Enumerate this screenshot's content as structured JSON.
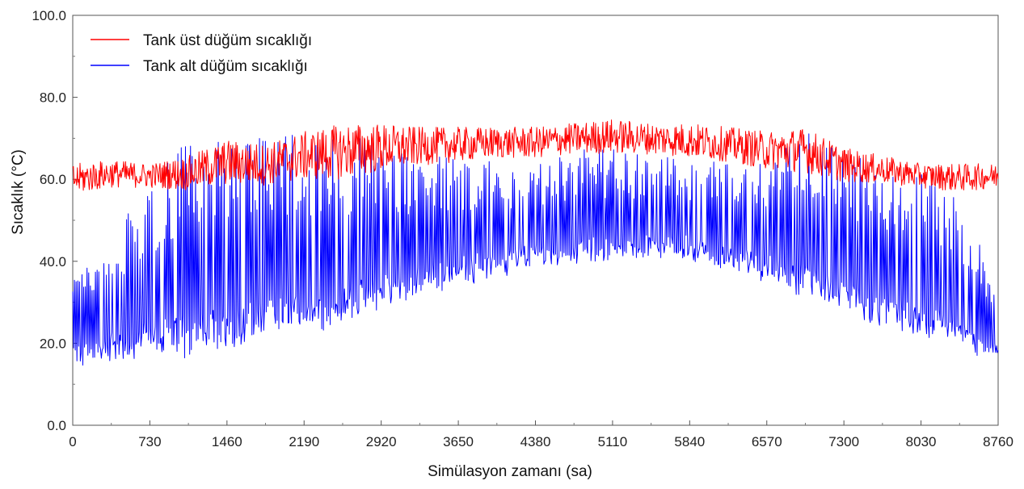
{
  "chart_data": {
    "type": "line",
    "xlabel": "Simülasyon zamanı (sa)",
    "ylabel": "Sıcaklık (°C)",
    "xlim": [
      0,
      8760
    ],
    "ylim": [
      0,
      100
    ],
    "x_ticks": [
      0,
      730,
      1460,
      2190,
      2920,
      3650,
      4380,
      5110,
      5840,
      6570,
      7300,
      8030,
      8760
    ],
    "x_tick_labels": [
      "0",
      "730",
      "1460",
      "2190",
      "2920",
      "3650",
      "4380",
      "5110",
      "5840",
      "6570",
      "7300",
      "8030",
      "8760"
    ],
    "y_ticks": [
      0,
      20,
      40,
      60,
      80,
      100
    ],
    "y_tick_labels": [
      "0.0",
      "20.0",
      "40.0",
      "60.0",
      "80.0",
      "100.0"
    ],
    "grid": false,
    "legend_position": "top-left",
    "series": [
      {
        "name": "Tank üst düğüm sıcaklığı",
        "color": "#ff0000",
        "envelope_x": [
          0,
          365,
          730,
          1095,
          1460,
          1825,
          2190,
          2555,
          2920,
          3285,
          3650,
          4015,
          4380,
          4745,
          5110,
          5475,
          5840,
          6205,
          6570,
          6935,
          7300,
          7665,
          8030,
          8395,
          8760
        ],
        "envelope_min": [
          55,
          57,
          57,
          56,
          57,
          57,
          58,
          58,
          60,
          62,
          63,
          64,
          64,
          65,
          65,
          65,
          64,
          63,
          61,
          60,
          58,
          58,
          57,
          56,
          57
        ],
        "envelope_max": [
          64,
          65,
          64,
          66,
          70,
          69,
          72,
          74,
          74,
          73,
          73,
          73,
          73,
          74,
          75,
          74,
          74,
          73,
          72,
          73,
          68,
          66,
          64,
          64,
          64
        ]
      },
      {
        "name": "Tank alt düğüm sıcaklığı",
        "color": "#0000ff",
        "envelope_x": [
          0,
          365,
          730,
          1095,
          1460,
          1825,
          2190,
          2555,
          2920,
          3285,
          3650,
          4015,
          4380,
          4745,
          5110,
          5475,
          5840,
          6205,
          6570,
          6935,
          7300,
          7665,
          8030,
          8395,
          8760
        ],
        "envelope_min": [
          11,
          12,
          12,
          11,
          13,
          16,
          18,
          20,
          24,
          27,
          31,
          33,
          35,
          36,
          36,
          37,
          37,
          35,
          31,
          27,
          23,
          19,
          17,
          15,
          13
        ],
        "envelope_max": [
          36,
          47,
          58,
          72,
          71,
          70,
          72,
          70,
          70,
          66,
          66,
          65,
          65,
          67,
          68,
          67,
          66,
          65,
          66,
          72,
          68,
          62,
          62,
          55,
          35
        ]
      }
    ]
  }
}
